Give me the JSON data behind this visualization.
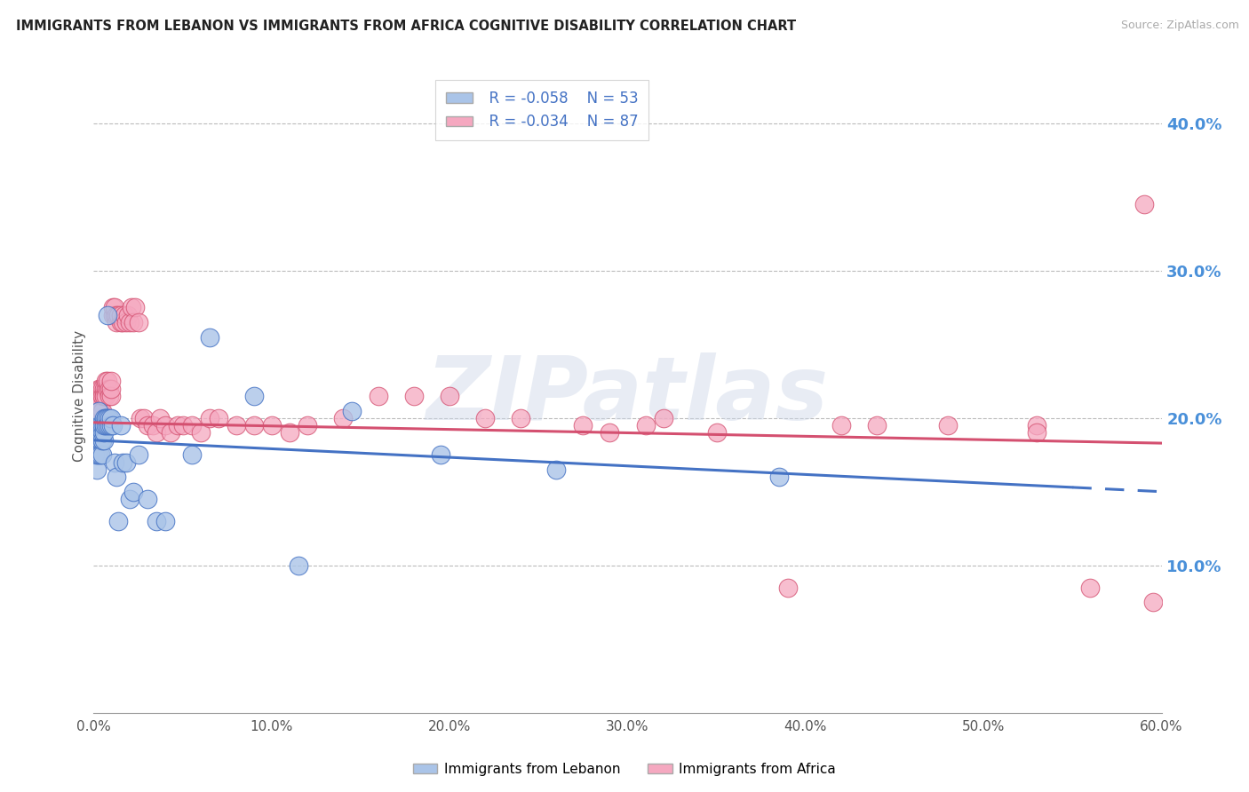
{
  "title": "IMMIGRANTS FROM LEBANON VS IMMIGRANTS FROM AFRICA COGNITIVE DISABILITY CORRELATION CHART",
  "source": "Source: ZipAtlas.com",
  "ylabel": "Cognitive Disability",
  "legend_label1": "Immigrants from Lebanon",
  "legend_label2": "Immigrants from Africa",
  "legend_r1": "R = -0.058",
  "legend_n1": "N = 53",
  "legend_r2": "R = -0.034",
  "legend_n2": "N = 87",
  "xlim": [
    0.0,
    0.6
  ],
  "ylim": [
    0.0,
    0.43
  ],
  "xticks": [
    0.0,
    0.1,
    0.2,
    0.3,
    0.4,
    0.5,
    0.6
  ],
  "yticks": [
    0.1,
    0.2,
    0.3,
    0.4
  ],
  "color_lebanon": "#aac4e8",
  "color_africa": "#f5a8c0",
  "color_line_lebanon": "#4472c4",
  "color_line_africa": "#d45070",
  "watermark": "ZIPatlas",
  "lb_line_start_y": 0.185,
  "lb_line_end_x": 0.55,
  "lb_line_end_y": 0.153,
  "lb_line_solid_end": 0.55,
  "lb_line_dash_end": 0.6,
  "af_line_start_y": 0.197,
  "af_line_end_x": 0.6,
  "af_line_end_y": 0.183,
  "lebanon_x": [
    0.001,
    0.002,
    0.002,
    0.003,
    0.003,
    0.003,
    0.003,
    0.004,
    0.004,
    0.004,
    0.004,
    0.004,
    0.005,
    0.005,
    0.005,
    0.005,
    0.005,
    0.006,
    0.006,
    0.006,
    0.006,
    0.006,
    0.007,
    0.007,
    0.007,
    0.008,
    0.008,
    0.008,
    0.009,
    0.009,
    0.01,
    0.01,
    0.011,
    0.012,
    0.013,
    0.014,
    0.015,
    0.016,
    0.018,
    0.02,
    0.022,
    0.025,
    0.03,
    0.035,
    0.04,
    0.055,
    0.065,
    0.09,
    0.115,
    0.145,
    0.195,
    0.26,
    0.385
  ],
  "lebanon_y": [
    0.175,
    0.165,
    0.175,
    0.175,
    0.185,
    0.195,
    0.205,
    0.185,
    0.19,
    0.185,
    0.195,
    0.175,
    0.185,
    0.19,
    0.195,
    0.175,
    0.185,
    0.185,
    0.195,
    0.2,
    0.19,
    0.195,
    0.2,
    0.195,
    0.2,
    0.2,
    0.195,
    0.27,
    0.195,
    0.2,
    0.195,
    0.2,
    0.195,
    0.17,
    0.16,
    0.13,
    0.195,
    0.17,
    0.17,
    0.145,
    0.15,
    0.175,
    0.145,
    0.13,
    0.13,
    0.175,
    0.255,
    0.215,
    0.1,
    0.205,
    0.175,
    0.165,
    0.16
  ],
  "africa_x": [
    0.001,
    0.001,
    0.002,
    0.002,
    0.002,
    0.003,
    0.003,
    0.003,
    0.003,
    0.004,
    0.004,
    0.004,
    0.004,
    0.005,
    0.005,
    0.005,
    0.005,
    0.006,
    0.006,
    0.006,
    0.007,
    0.007,
    0.007,
    0.008,
    0.008,
    0.009,
    0.009,
    0.01,
    0.01,
    0.01,
    0.011,
    0.011,
    0.012,
    0.012,
    0.013,
    0.013,
    0.014,
    0.015,
    0.015,
    0.016,
    0.017,
    0.018,
    0.019,
    0.02,
    0.021,
    0.022,
    0.023,
    0.025,
    0.026,
    0.028,
    0.03,
    0.033,
    0.035,
    0.037,
    0.04,
    0.043,
    0.047,
    0.05,
    0.055,
    0.06,
    0.065,
    0.07,
    0.08,
    0.09,
    0.1,
    0.11,
    0.12,
    0.14,
    0.16,
    0.18,
    0.2,
    0.22,
    0.24,
    0.275,
    0.31,
    0.35,
    0.39,
    0.44,
    0.48,
    0.53,
    0.32,
    0.42,
    0.53,
    0.59,
    0.56,
    0.595,
    0.29
  ],
  "africa_y": [
    0.2,
    0.21,
    0.2,
    0.21,
    0.215,
    0.2,
    0.21,
    0.22,
    0.215,
    0.205,
    0.215,
    0.22,
    0.21,
    0.215,
    0.22,
    0.215,
    0.205,
    0.215,
    0.22,
    0.215,
    0.22,
    0.215,
    0.225,
    0.22,
    0.225,
    0.22,
    0.215,
    0.215,
    0.22,
    0.225,
    0.27,
    0.275,
    0.27,
    0.275,
    0.265,
    0.27,
    0.27,
    0.265,
    0.27,
    0.265,
    0.27,
    0.265,
    0.27,
    0.265,
    0.275,
    0.265,
    0.275,
    0.265,
    0.2,
    0.2,
    0.195,
    0.195,
    0.19,
    0.2,
    0.195,
    0.19,
    0.195,
    0.195,
    0.195,
    0.19,
    0.2,
    0.2,
    0.195,
    0.195,
    0.195,
    0.19,
    0.195,
    0.2,
    0.215,
    0.215,
    0.215,
    0.2,
    0.2,
    0.195,
    0.195,
    0.19,
    0.085,
    0.195,
    0.195,
    0.195,
    0.2,
    0.195,
    0.19,
    0.345,
    0.085,
    0.075,
    0.19
  ]
}
